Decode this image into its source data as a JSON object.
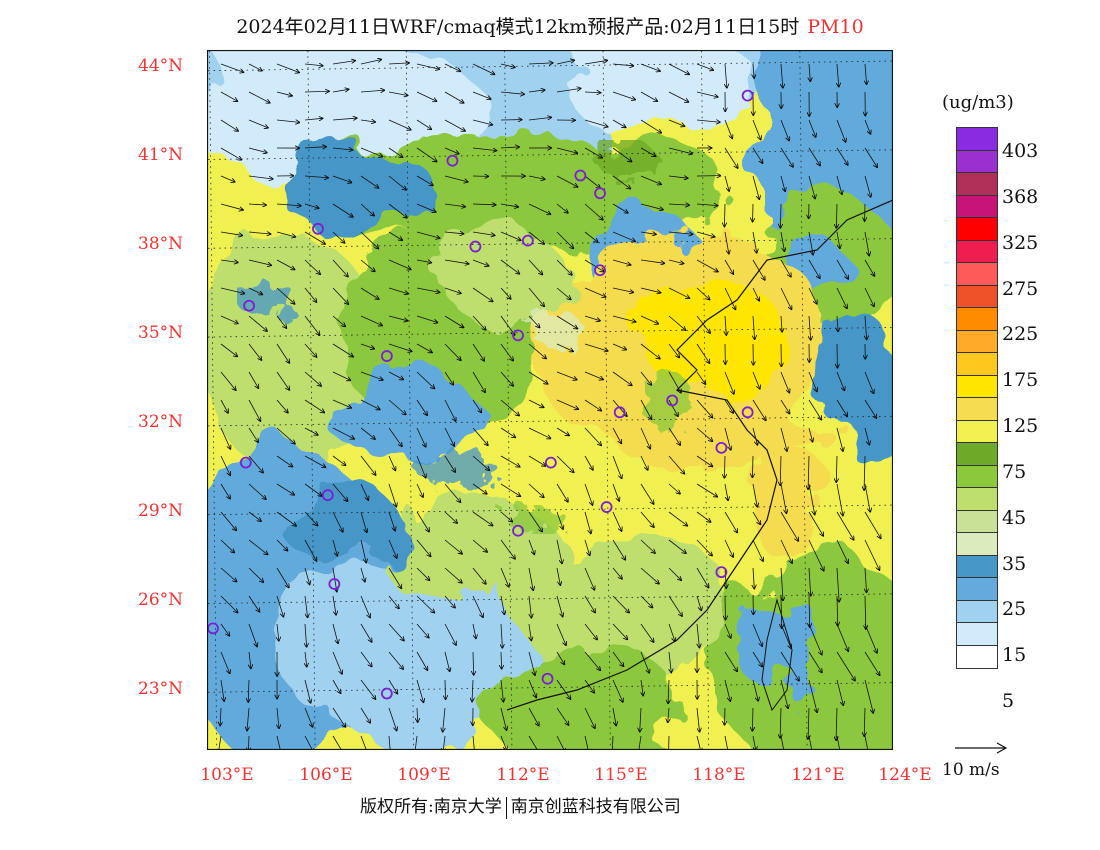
{
  "title": {
    "main": "2024年02月11日WRF/cmaq模式12km预报产品:02月11日15时",
    "pollutant": "PM10"
  },
  "axes": {
    "lat_labels": [
      "44°N",
      "41°N",
      "38°N",
      "35°N",
      "32°N",
      "29°N",
      "26°N",
      "23°N"
    ],
    "lon_labels": [
      "103°E",
      "106°E",
      "109°E",
      "112°E",
      "115°E",
      "118°E",
      "121°E",
      "124°E"
    ]
  },
  "colorbar": {
    "unit": "(ug/m3)",
    "colors": [
      "#8a2be2",
      "#9b30d0",
      "#b0305a",
      "#c81478",
      "#ff0000",
      "#f01e50",
      "#ff5a5a",
      "#ee5028",
      "#ff8c00",
      "#ffaa28",
      "#ffc81e",
      "#ffe600",
      "#f5dc50",
      "#f0f050",
      "#6eaa28",
      "#8cc83c",
      "#bede6e",
      "#c8e196",
      "#dcebbe",
      "#4696c8",
      "#64aadc",
      "#a0d2f0",
      "#d2ebfa",
      "#ffffff"
    ],
    "labels": [
      "403",
      "368",
      "325",
      "275",
      "225",
      "175",
      "125",
      "75",
      "45",
      "35",
      "25",
      "15",
      "5"
    ]
  },
  "wind": {
    "label": "10 m/s"
  },
  "cities": [
    {
      "lon": 119.3,
      "lat": 43.0
    },
    {
      "lon": 110.3,
      "lat": 40.8
    },
    {
      "lon": 114.2,
      "lat": 40.3
    },
    {
      "lon": 114.8,
      "lat": 39.7
    },
    {
      "lon": 106.2,
      "lat": 38.5
    },
    {
      "lon": 111.0,
      "lat": 37.9
    },
    {
      "lon": 112.6,
      "lat": 38.1
    },
    {
      "lon": 114.8,
      "lat": 37.1
    },
    {
      "lon": 104.1,
      "lat": 35.9
    },
    {
      "lon": 112.3,
      "lat": 34.9
    },
    {
      "lon": 108.3,
      "lat": 34.2
    },
    {
      "lon": 115.4,
      "lat": 32.3
    },
    {
      "lon": 117.0,
      "lat": 32.7
    },
    {
      "lon": 119.3,
      "lat": 32.3
    },
    {
      "lon": 118.5,
      "lat": 31.1
    },
    {
      "lon": 113.3,
      "lat": 30.6
    },
    {
      "lon": 104.0,
      "lat": 30.6
    },
    {
      "lon": 106.5,
      "lat": 29.5
    },
    {
      "lon": 115.0,
      "lat": 29.1
    },
    {
      "lon": 112.3,
      "lat": 28.3
    },
    {
      "lon": 106.7,
      "lat": 26.5
    },
    {
      "lon": 118.5,
      "lat": 26.9
    },
    {
      "lon": 103.0,
      "lat": 25.0
    },
    {
      "lon": 108.3,
      "lat": 22.8
    },
    {
      "lon": 113.2,
      "lat": 23.3
    }
  ],
  "copyright": {
    "left": "版权所有:南京大学",
    "right": "南京创蓝科技有限公司"
  }
}
